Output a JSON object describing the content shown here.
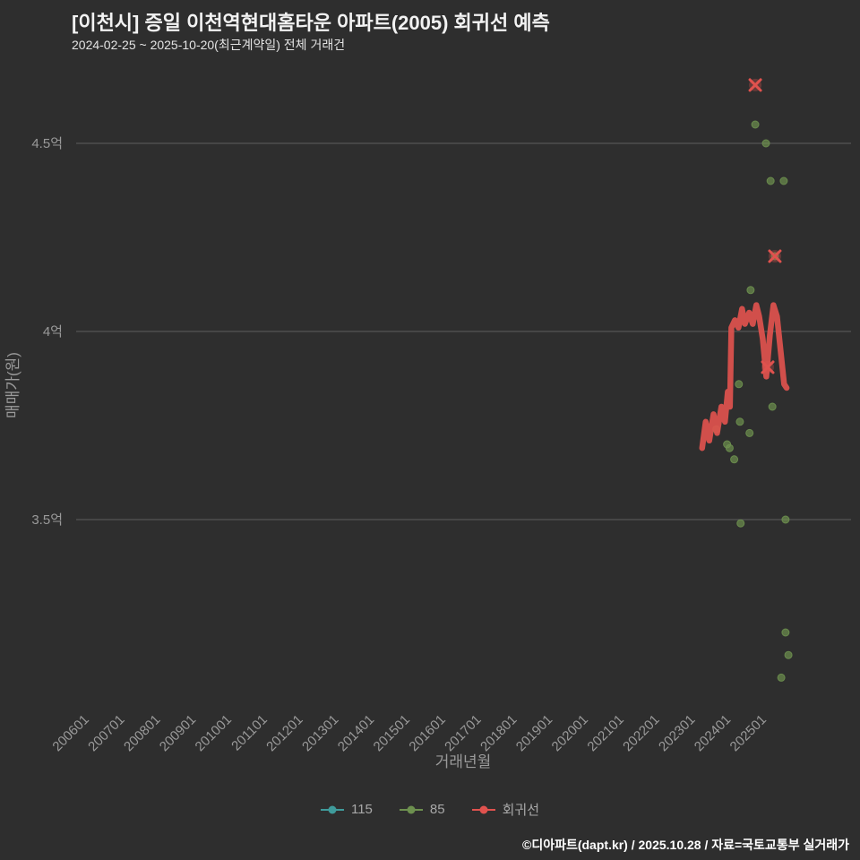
{
  "header": {
    "title": "[이천시] 증일 이천역현대홈타운 아파트(2005) 회귀선 예측",
    "subtitle": "2024-02-25 ~ 2025-10-20(최근계약일) 전체 거래건"
  },
  "footer": {
    "credit": "©디아파트(dapt.kr) / 2025.10.28 / 자료=국토교통부 실거래가"
  },
  "chart_data": {
    "type": "scatter",
    "title": "[이천시] 증일 이천역현대홈타운 아파트(2005) 회귀선 예측",
    "xlabel": "거래년월",
    "ylabel": "매매가(원)",
    "grid": true,
    "legend_position": "bottom",
    "x_ticks": [
      "200601",
      "200701",
      "200801",
      "200901",
      "201001",
      "201101",
      "201201",
      "201301",
      "201401",
      "201501",
      "201601",
      "201701",
      "201801",
      "201901",
      "202001",
      "202101",
      "202201",
      "202301",
      "202401",
      "202501"
    ],
    "y_ticks": [
      {
        "label": "4.5억",
        "value": 4.5
      },
      {
        "label": "4억",
        "value": 4.0
      },
      {
        "label": "3.5억",
        "value": 3.5
      }
    ],
    "xlim": [
      2005.6,
      2026.4
    ],
    "ylim": [
      3.0,
      4.75
    ],
    "series": [
      {
        "name": "115",
        "color": "#3f9b9b",
        "marker": "dot",
        "points": []
      },
      {
        "name": "85",
        "color": "#6d904f",
        "marker": "dot",
        "points": [
          [
            2024.67,
            4.55
          ],
          [
            2024.97,
            4.5
          ],
          [
            2025.1,
            4.4
          ],
          [
            2025.47,
            4.4
          ],
          [
            2025.22,
            4.2
          ],
          [
            2024.54,
            4.11
          ],
          [
            2024.21,
            3.86
          ],
          [
            2025.15,
            3.8
          ],
          [
            2023.58,
            3.74
          ],
          [
            2024.24,
            3.76
          ],
          [
            2023.88,
            3.7
          ],
          [
            2024.51,
            3.73
          ],
          [
            2024.08,
            3.66
          ],
          [
            2023.95,
            3.69
          ],
          [
            2024.26,
            3.49
          ],
          [
            2025.52,
            3.5
          ],
          [
            2025.52,
            3.2
          ],
          [
            2025.6,
            3.14
          ],
          [
            2025.4,
            3.08
          ]
        ]
      },
      {
        "name": "회귀선",
        "color": "#e0524e",
        "marker": "x",
        "points": [
          [
            2024.67,
            4.655
          ],
          [
            2025.22,
            4.2
          ],
          [
            2025.02,
            3.905
          ]
        ],
        "line_points": [
          [
            2023.18,
            3.69
          ],
          [
            2023.28,
            3.76
          ],
          [
            2023.38,
            3.71
          ],
          [
            2023.5,
            3.78
          ],
          [
            2023.6,
            3.73
          ],
          [
            2023.72,
            3.8
          ],
          [
            2023.82,
            3.76
          ],
          [
            2023.9,
            3.84
          ],
          [
            2023.96,
            3.8
          ],
          [
            2024.0,
            4.01
          ],
          [
            2024.1,
            4.03
          ],
          [
            2024.2,
            4.01
          ],
          [
            2024.3,
            4.06
          ],
          [
            2024.38,
            4.02
          ],
          [
            2024.5,
            4.05
          ],
          [
            2024.6,
            4.02
          ],
          [
            2024.7,
            4.07
          ],
          [
            2024.78,
            4.04
          ],
          [
            2024.88,
            3.98
          ],
          [
            2024.98,
            3.88
          ],
          [
            2025.08,
            3.99
          ],
          [
            2025.18,
            4.07
          ],
          [
            2025.28,
            4.04
          ],
          [
            2025.38,
            3.95
          ],
          [
            2025.48,
            3.86
          ],
          [
            2025.55,
            3.85
          ]
        ]
      }
    ]
  }
}
